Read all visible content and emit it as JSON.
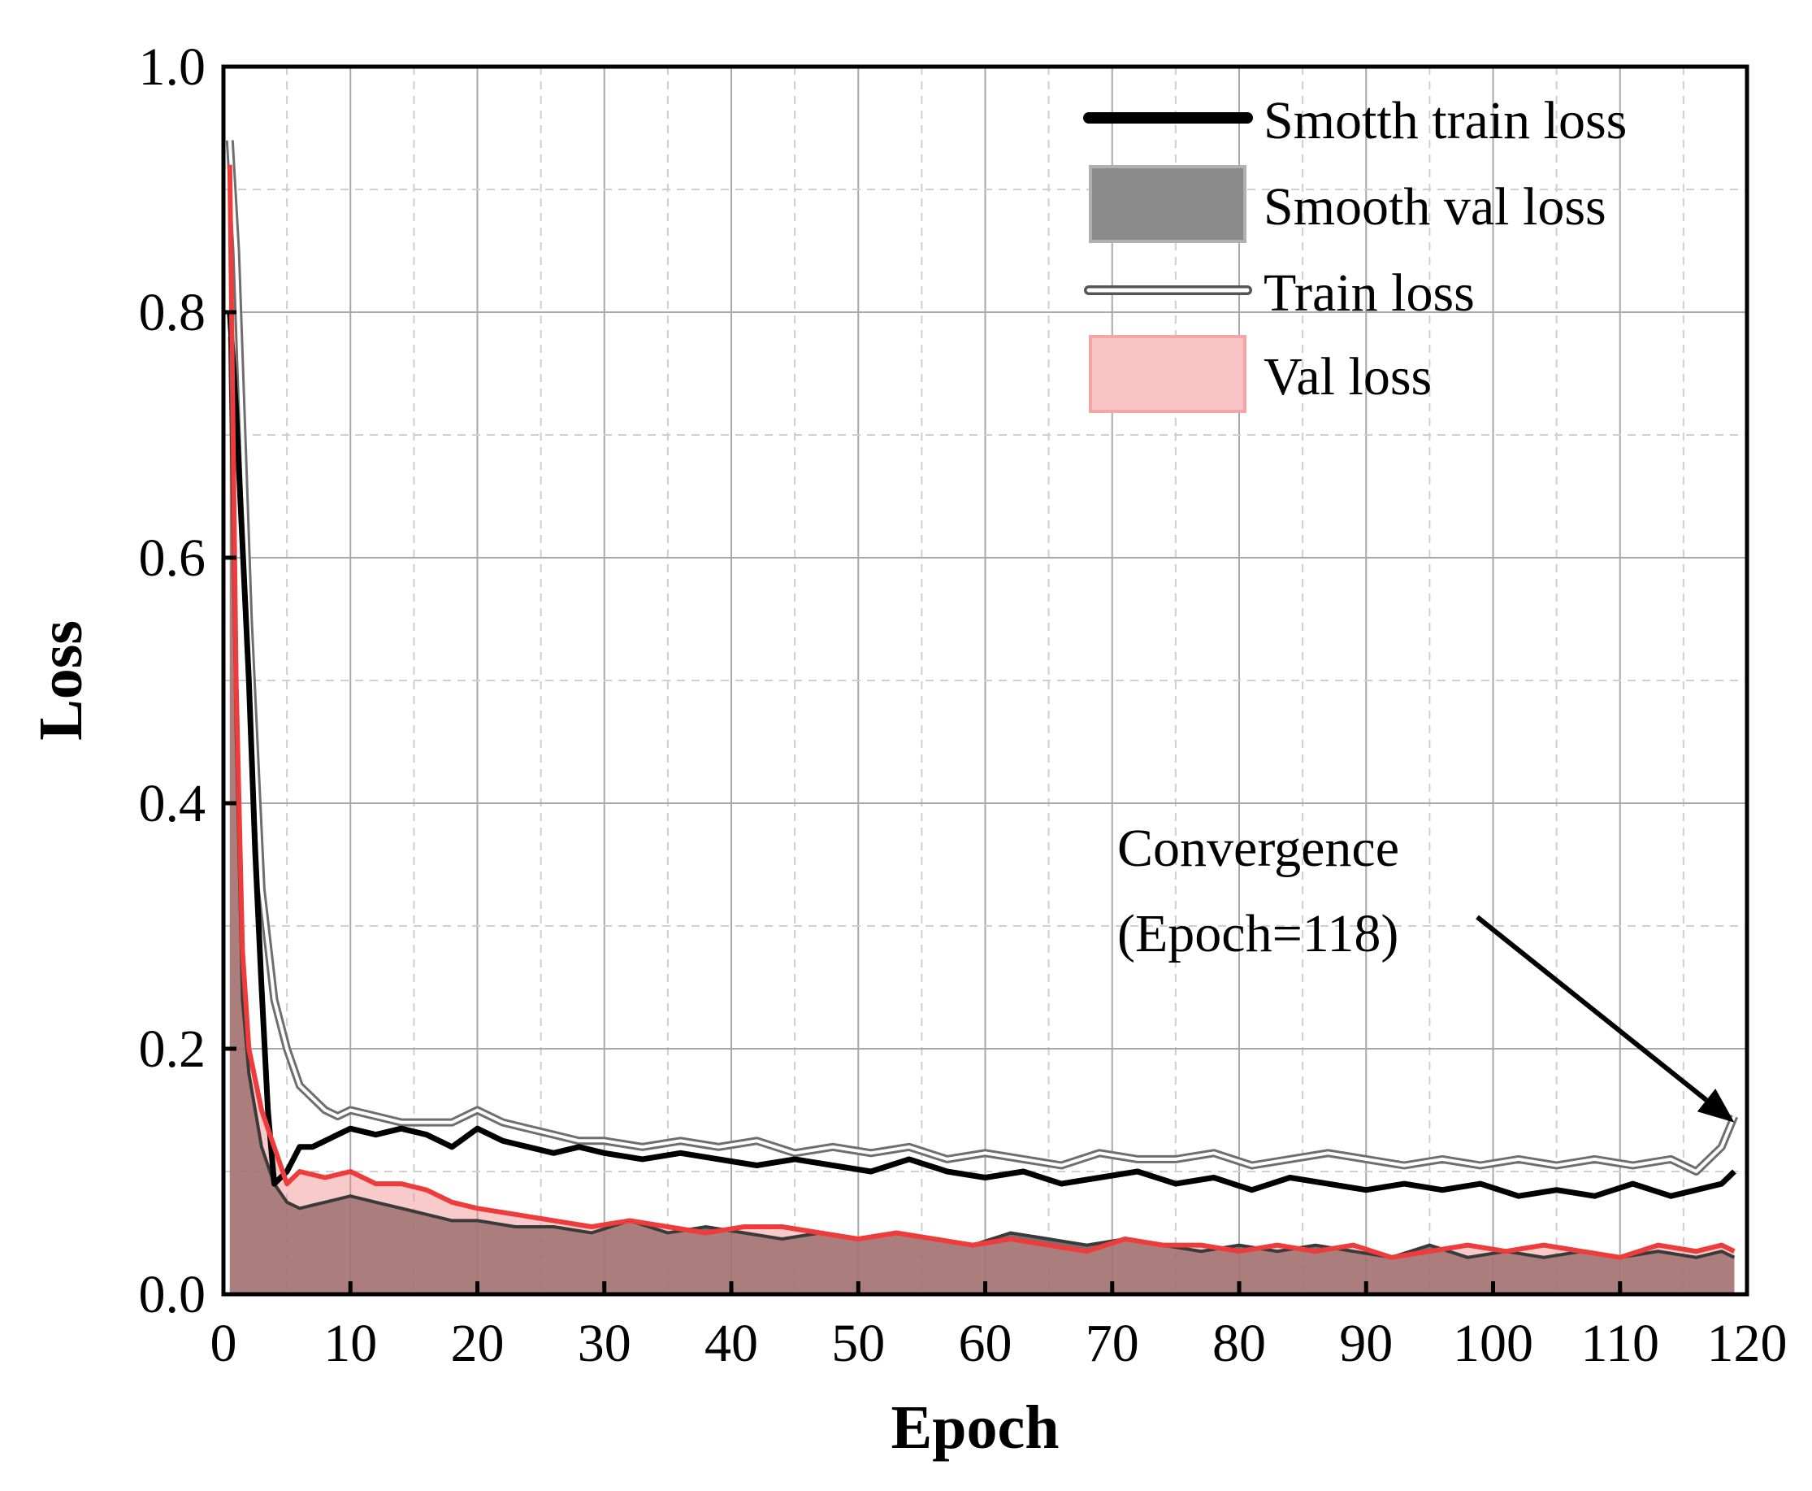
{
  "chart_data": {
    "type": "line",
    "title": "",
    "xlabel": "Epoch",
    "ylabel": "Loss",
    "xlim": [
      0,
      120
    ],
    "ylim": [
      0,
      1.0
    ],
    "x_ticks": [
      0,
      10,
      20,
      30,
      40,
      50,
      60,
      70,
      80,
      90,
      100,
      110,
      120
    ],
    "x_tick_labels": [
      "0",
      "10",
      "20",
      "30",
      "40",
      "50",
      "60",
      "70",
      "80",
      "90",
      "100",
      "110",
      "120"
    ],
    "y_ticks": [
      0.0,
      0.2,
      0.4,
      0.6,
      0.8,
      1.0
    ],
    "y_tick_labels": [
      "0.0",
      "0.2",
      "0.4",
      "0.6",
      "0.8",
      "1.0"
    ],
    "grid": true,
    "legend_position": "top-right",
    "legend": [
      {
        "label": "Smotth train loss",
        "style": "thick-line",
        "color": "#000000"
      },
      {
        "label": "Smooth val loss",
        "style": "area",
        "color": "#4d4d4d"
      },
      {
        "label": "Train loss",
        "style": "double-line",
        "color": "#7f7f7f"
      },
      {
        "label": "Val loss",
        "style": "area",
        "color": "#f4a6a6"
      }
    ],
    "annotation": {
      "lines": [
        "Convergence",
        "(Epoch=118)"
      ],
      "target": {
        "x": 119,
        "y": 0.14
      }
    },
    "series": [
      {
        "name": "Train loss",
        "color": "#7f7f7f",
        "x": [
          0.5,
          1,
          2,
          3,
          4,
          5,
          6,
          7,
          8,
          9,
          10,
          12,
          14,
          16,
          18,
          20,
          22,
          24,
          26,
          28,
          30,
          33,
          36,
          39,
          42,
          45,
          48,
          51,
          54,
          57,
          60,
          63,
          66,
          69,
          72,
          75,
          78,
          81,
          84,
          87,
          90,
          93,
          96,
          99,
          102,
          105,
          108,
          111,
          114,
          116,
          118,
          119
        ],
        "values": [
          0.94,
          0.85,
          0.55,
          0.33,
          0.24,
          0.2,
          0.17,
          0.16,
          0.15,
          0.145,
          0.15,
          0.145,
          0.14,
          0.14,
          0.14,
          0.15,
          0.14,
          0.135,
          0.13,
          0.125,
          0.125,
          0.12,
          0.125,
          0.12,
          0.125,
          0.115,
          0.12,
          0.115,
          0.12,
          0.11,
          0.115,
          0.11,
          0.105,
          0.115,
          0.11,
          0.11,
          0.115,
          0.105,
          0.11,
          0.115,
          0.11,
          0.105,
          0.11,
          0.105,
          0.11,
          0.105,
          0.11,
          0.105,
          0.11,
          0.1,
          0.12,
          0.145
        ]
      },
      {
        "name": "Smotth train loss",
        "color": "#000000",
        "x": [
          0.5,
          1,
          2,
          2.5,
          3,
          3.5,
          4,
          5,
          6,
          7,
          8,
          9,
          10,
          12,
          14,
          16,
          18,
          20,
          22,
          24,
          26,
          28,
          30,
          33,
          36,
          39,
          42,
          45,
          48,
          51,
          54,
          57,
          60,
          63,
          66,
          69,
          72,
          75,
          78,
          81,
          84,
          87,
          90,
          93,
          96,
          99,
          102,
          105,
          108,
          111,
          114,
          116,
          118,
          119
        ],
        "values": [
          0.8,
          0.72,
          0.5,
          0.36,
          0.25,
          0.15,
          0.09,
          0.1,
          0.12,
          0.12,
          0.125,
          0.13,
          0.135,
          0.13,
          0.135,
          0.13,
          0.12,
          0.135,
          0.125,
          0.12,
          0.115,
          0.12,
          0.115,
          0.11,
          0.115,
          0.11,
          0.105,
          0.11,
          0.105,
          0.1,
          0.11,
          0.1,
          0.095,
          0.1,
          0.09,
          0.095,
          0.1,
          0.09,
          0.095,
          0.085,
          0.095,
          0.09,
          0.085,
          0.09,
          0.085,
          0.09,
          0.08,
          0.085,
          0.08,
          0.09,
          0.08,
          0.085,
          0.09,
          0.1
        ]
      },
      {
        "name": "Smooth val loss",
        "color": "#4d4d4d",
        "x": [
          0.5,
          1,
          1.5,
          2,
          3,
          4,
          5,
          6,
          8,
          10,
          12,
          14,
          16,
          18,
          20,
          23,
          26,
          29,
          32,
          35,
          38,
          41,
          44,
          47,
          50,
          53,
          56,
          59,
          62,
          65,
          68,
          71,
          74,
          77,
          80,
          83,
          86,
          89,
          92,
          95,
          98,
          101,
          104,
          107,
          110,
          113,
          116,
          118,
          119
        ],
        "values": [
          0.78,
          0.46,
          0.24,
          0.18,
          0.12,
          0.09,
          0.075,
          0.07,
          0.075,
          0.08,
          0.075,
          0.07,
          0.065,
          0.06,
          0.06,
          0.055,
          0.055,
          0.05,
          0.06,
          0.05,
          0.055,
          0.05,
          0.045,
          0.05,
          0.045,
          0.05,
          0.045,
          0.04,
          0.05,
          0.045,
          0.04,
          0.045,
          0.04,
          0.035,
          0.04,
          0.035,
          0.04,
          0.035,
          0.03,
          0.04,
          0.03,
          0.035,
          0.03,
          0.035,
          0.03,
          0.035,
          0.03,
          0.035,
          0.03
        ]
      },
      {
        "name": "Val loss",
        "color": "#ee3b3b",
        "x": [
          0.5,
          1,
          1.5,
          2,
          3,
          4,
          5,
          6,
          8,
          10,
          12,
          14,
          16,
          18,
          20,
          23,
          26,
          29,
          32,
          35,
          38,
          41,
          44,
          47,
          50,
          53,
          56,
          59,
          62,
          65,
          68,
          71,
          74,
          77,
          80,
          83,
          86,
          89,
          92,
          95,
          98,
          101,
          104,
          107,
          110,
          113,
          116,
          118,
          119
        ],
        "values": [
          0.92,
          0.5,
          0.28,
          0.2,
          0.15,
          0.12,
          0.09,
          0.1,
          0.095,
          0.1,
          0.09,
          0.09,
          0.085,
          0.075,
          0.07,
          0.065,
          0.06,
          0.055,
          0.06,
          0.055,
          0.05,
          0.055,
          0.055,
          0.05,
          0.045,
          0.05,
          0.045,
          0.04,
          0.045,
          0.04,
          0.035,
          0.045,
          0.04,
          0.04,
          0.035,
          0.04,
          0.035,
          0.04,
          0.03,
          0.035,
          0.04,
          0.035,
          0.04,
          0.035,
          0.03,
          0.04,
          0.035,
          0.04,
          0.035
        ]
      }
    ]
  }
}
